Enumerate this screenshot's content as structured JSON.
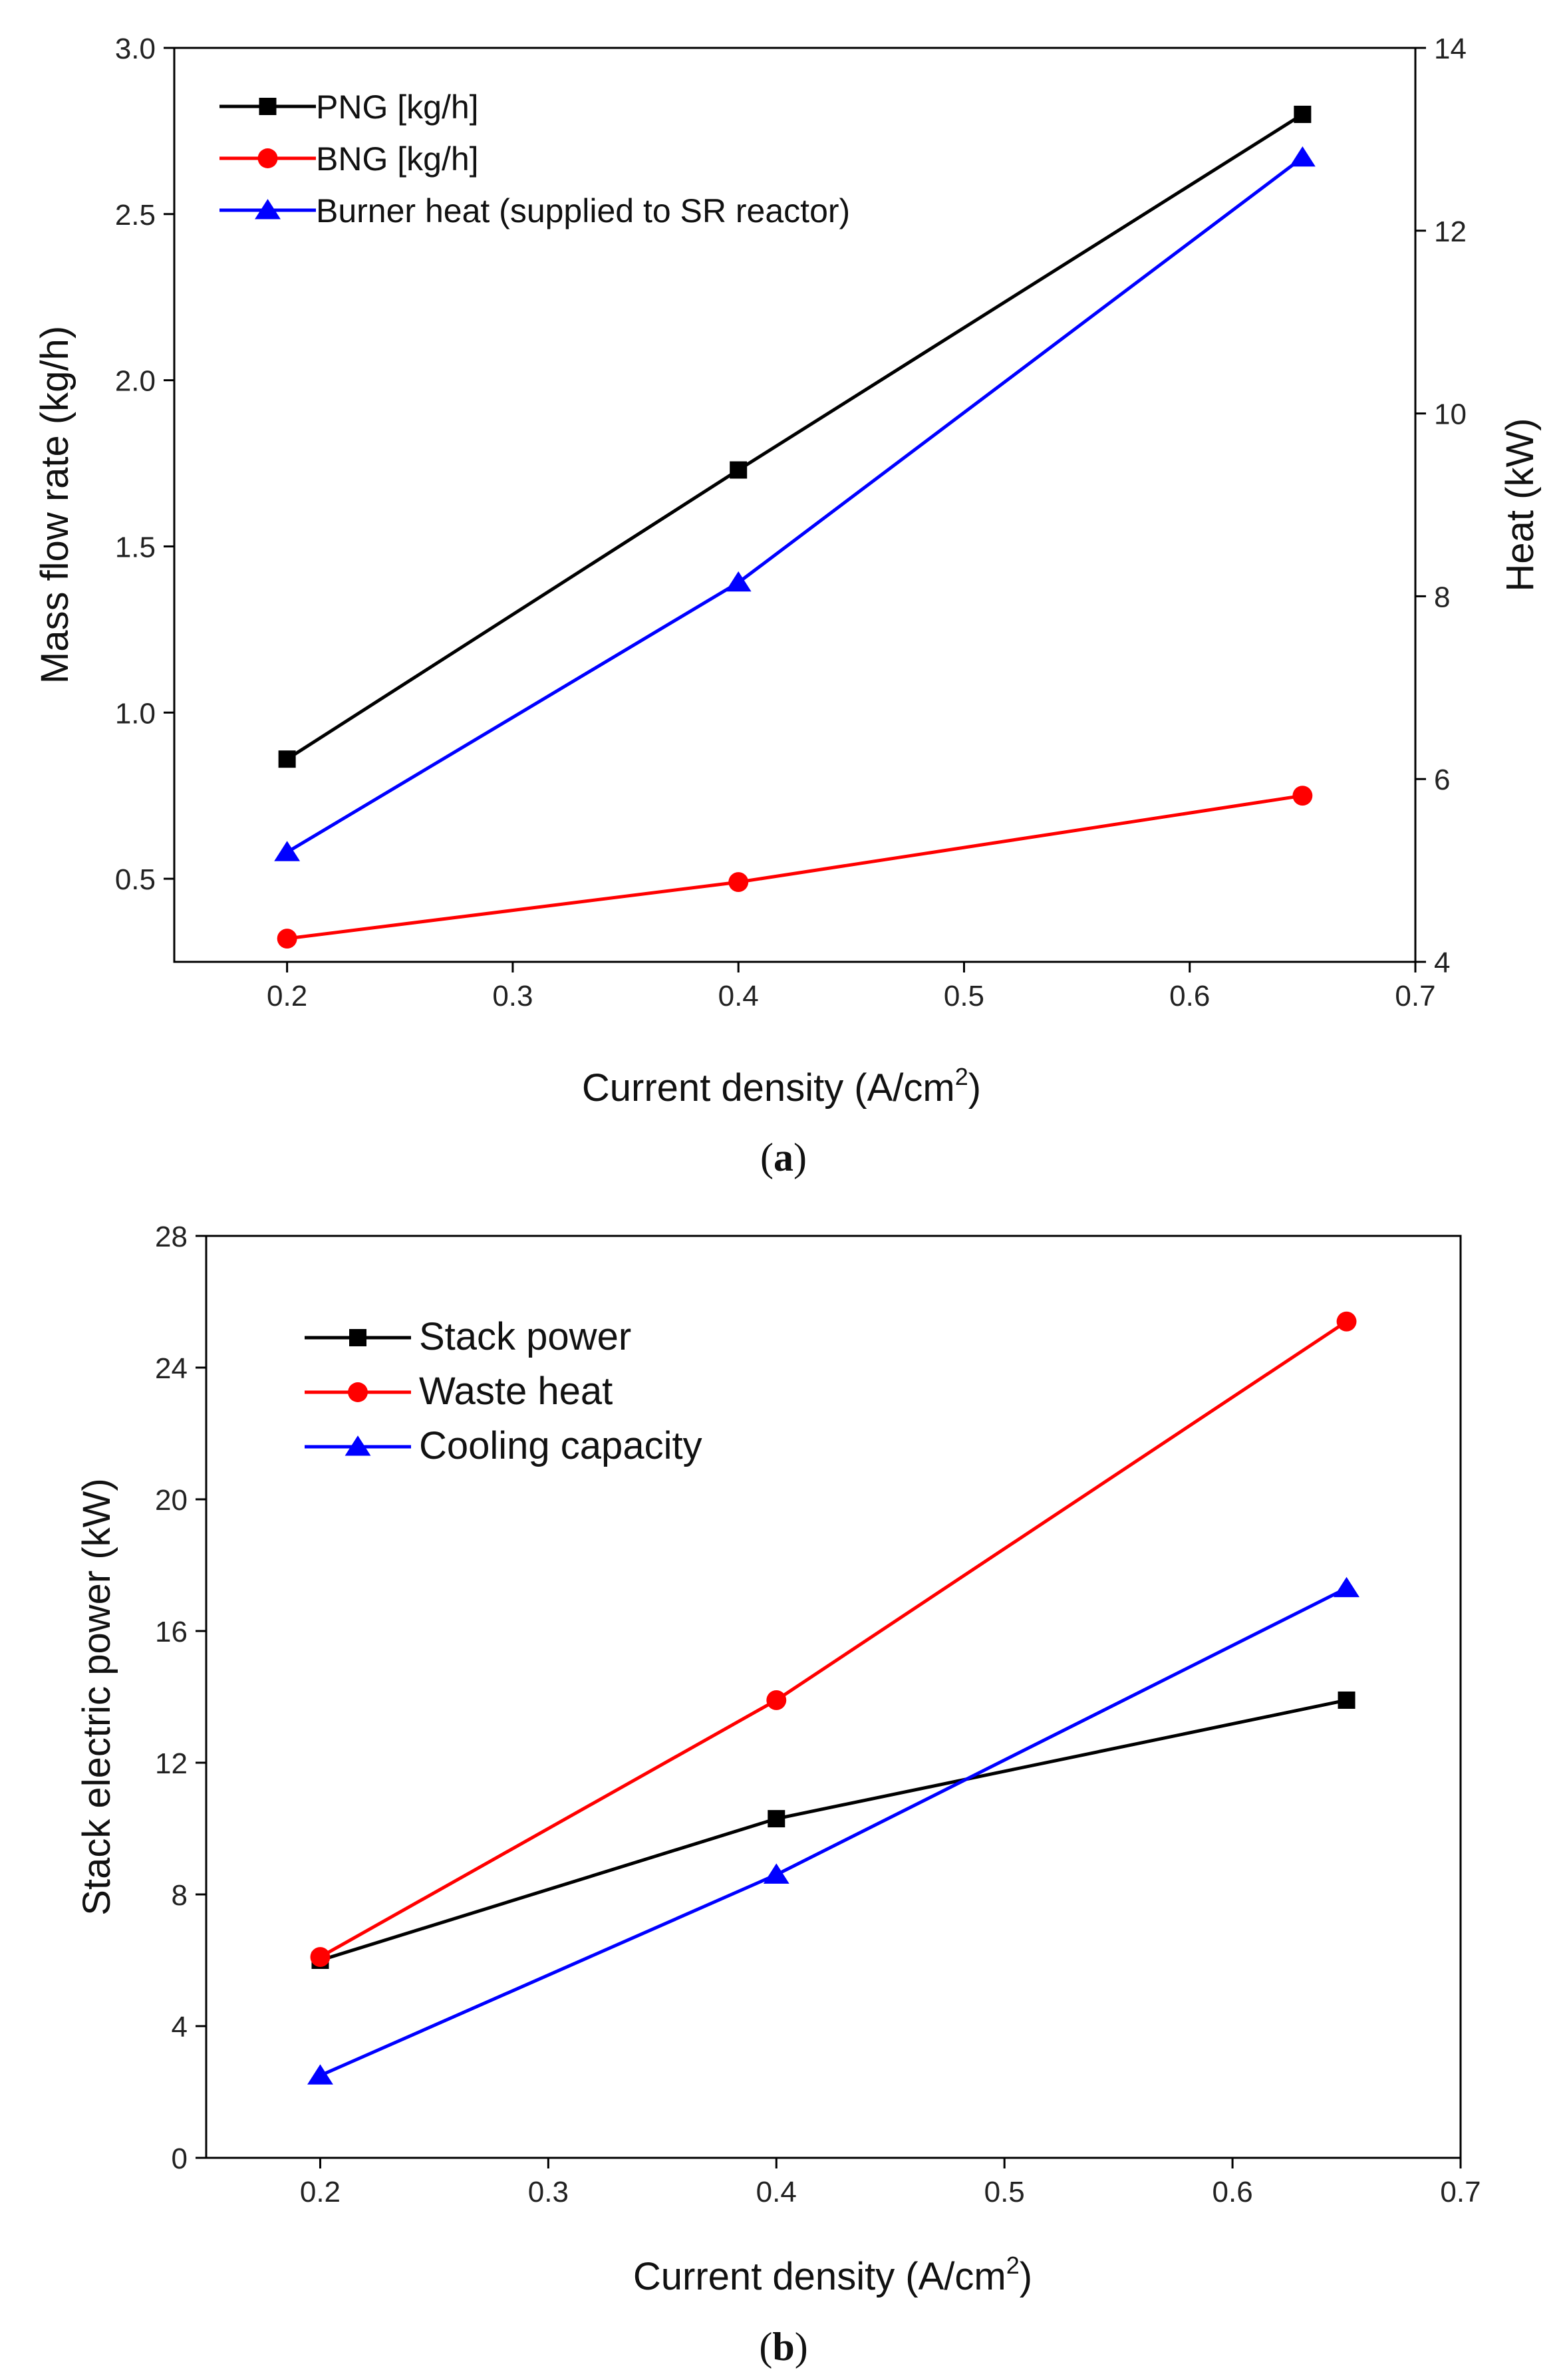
{
  "chart_data": [
    {
      "type": "line",
      "panel_label": "(a)",
      "panel_letter": "a",
      "x": [
        0.2,
        0.4,
        0.65
      ],
      "xlabel": "Current density (A/cm",
      "xlabel_sup": "2",
      "xlabel_close": ")",
      "xlim": [
        0.15,
        0.7
      ],
      "xticks": [
        "0.2",
        "0.3",
        "0.4",
        "0.5",
        "0.6",
        "0.7"
      ],
      "ylabel": "Mass flow rate (kg/h)",
      "ylim": [
        0.25,
        3.0
      ],
      "yticks": [
        "0.5",
        "1.0",
        "1.5",
        "2.0",
        "2.5",
        "3.0"
      ],
      "y2label": "Heat (kW)",
      "y2lim": [
        4,
        14
      ],
      "y2ticks": [
        "4",
        "6",
        "8",
        "10",
        "12",
        "14"
      ],
      "legend_position": "top-left",
      "series": [
        {
          "name": "PNG [kg/h]",
          "axis": "left",
          "color": "#000000",
          "marker": "square",
          "values": [
            0.86,
            1.73,
            2.8
          ]
        },
        {
          "name": "BNG [kg/h]",
          "axis": "left",
          "color": "#ff0000",
          "marker": "circle",
          "values": [
            0.32,
            0.49,
            0.75
          ]
        },
        {
          "name": "Burner heat (supplied to SR reactor)",
          "axis": "right",
          "color": "#0000ff",
          "marker": "triangle",
          "values": [
            5.2,
            8.15,
            12.8
          ]
        }
      ]
    },
    {
      "type": "line",
      "panel_label": "(b)",
      "panel_letter": "b",
      "x": [
        0.2,
        0.4,
        0.65
      ],
      "xlabel": "Current density (A/cm",
      "xlabel_sup": "2",
      "xlabel_close": ")",
      "xlim": [
        0.15,
        0.7
      ],
      "xticks": [
        "0.2",
        "0.3",
        "0.4",
        "0.5",
        "0.6",
        "0.7"
      ],
      "ylabel": "Stack electric power (kW)",
      "ylim": [
        0,
        28
      ],
      "yticks": [
        "0",
        "4",
        "8",
        "12",
        "16",
        "20",
        "24",
        "28"
      ],
      "legend_position": "top-left",
      "series": [
        {
          "name": "Stack power",
          "axis": "left",
          "color": "#000000",
          "marker": "square",
          "values": [
            6.0,
            10.3,
            13.9
          ]
        },
        {
          "name": "Waste heat",
          "axis": "left",
          "color": "#ff0000",
          "marker": "circle",
          "values": [
            6.1,
            13.9,
            25.4
          ]
        },
        {
          "name": "Cooling capacity",
          "axis": "left",
          "color": "#0000ff",
          "marker": "triangle",
          "values": [
            2.5,
            8.6,
            17.3
          ]
        }
      ]
    }
  ]
}
